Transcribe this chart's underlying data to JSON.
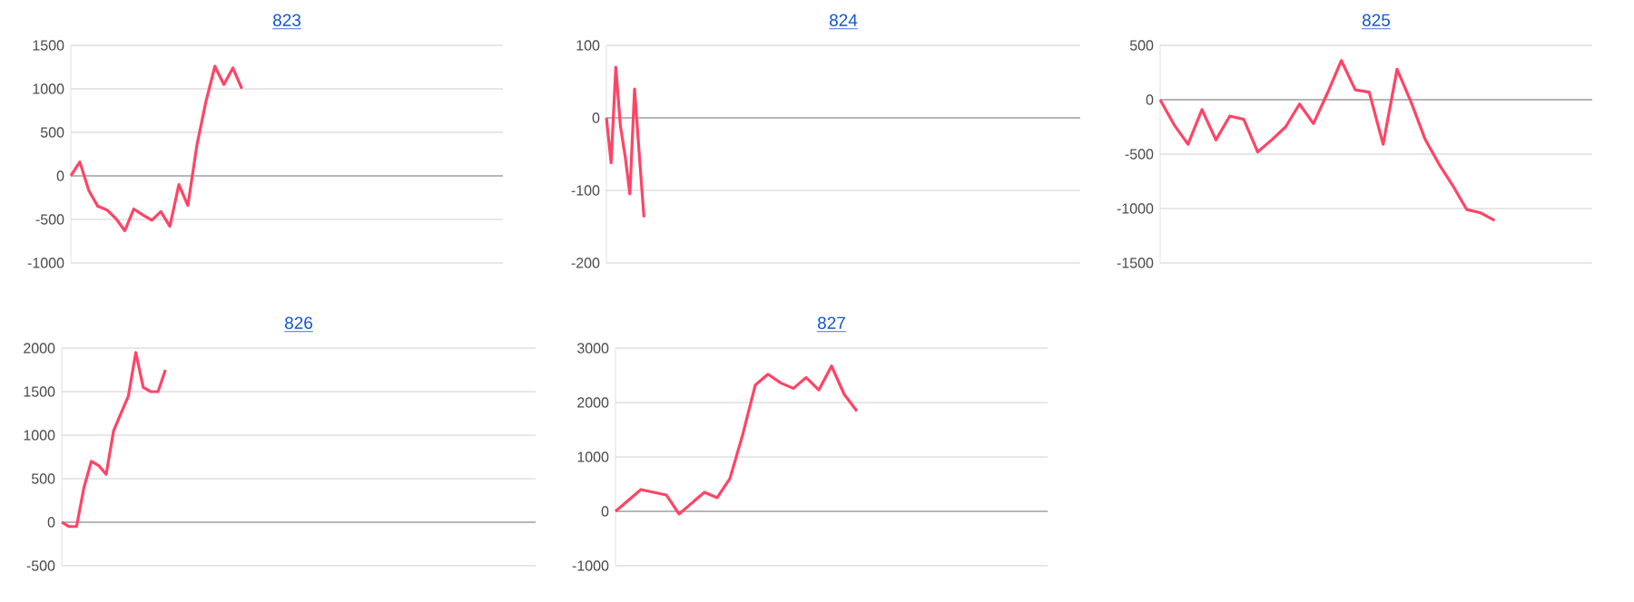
{
  "chart_data": [
    {
      "type": "line",
      "title": "823",
      "color": "#ff4466",
      "grid": "y",
      "tick_labels": "y",
      "ylim": [
        -1000,
        1500
      ],
      "yticks": [
        -1000,
        -500,
        0,
        500,
        1000,
        1500
      ],
      "categories": [
        null,
        null,
        null,
        null,
        null,
        null,
        null,
        null,
        null,
        null,
        null,
        null,
        null,
        null,
        null,
        null,
        null,
        null,
        null,
        null,
        null,
        null,
        null,
        null,
        null,
        null,
        null,
        null,
        null,
        null,
        null,
        null,
        null,
        null,
        null,
        null,
        null,
        null,
        null,
        null,
        null,
        null,
        null,
        null,
        null,
        null,
        null,
        null,
        null
      ],
      "values": [
        0,
        160,
        -170,
        -350,
        -390,
        -490,
        -630,
        -380,
        -450,
        -510,
        -410,
        -580,
        -100,
        -340,
        350,
        850,
        1260,
        1050,
        1240,
        1000,
        null,
        null,
        null,
        null,
        null,
        null,
        null,
        null,
        null,
        null,
        null,
        null,
        null,
        null,
        null,
        null,
        null,
        null,
        null,
        null,
        null,
        null,
        null,
        null,
        null,
        null,
        null,
        null,
        null
      ]
    },
    {
      "type": "line",
      "title": "824",
      "color": "#ff4466",
      "grid": "y",
      "tick_labels": "y",
      "ylim": [
        -200,
        100
      ],
      "yticks": [
        -200,
        -100,
        0,
        100
      ],
      "categories": [
        null,
        null,
        null,
        null,
        null,
        null,
        null,
        null,
        null,
        null,
        null,
        null,
        null,
        null,
        null,
        null,
        null,
        null,
        null,
        null,
        null,
        null,
        null,
        null,
        null,
        null,
        null,
        null,
        null,
        null,
        null,
        null,
        null,
        null,
        null,
        null,
        null,
        null,
        null,
        null,
        null,
        null,
        null,
        null,
        null,
        null,
        null,
        null,
        null,
        null,
        null,
        null,
        null,
        null,
        null,
        null,
        null,
        null,
        null,
        null,
        null,
        null,
        null,
        null,
        null,
        null,
        null,
        null,
        null,
        null,
        null,
        null,
        null,
        null,
        null,
        null,
        null,
        null,
        null,
        null,
        null,
        null,
        null,
        null,
        null,
        null,
        null,
        null,
        null,
        null,
        null,
        null,
        null,
        null,
        null,
        null,
        null,
        null,
        null,
        null,
        null,
        null
      ],
      "values": [
        0,
        -62,
        70,
        -12,
        -53,
        -105,
        40,
        -50,
        -137,
        null,
        null,
        null,
        null,
        null,
        null,
        null,
        null,
        null,
        null,
        null,
        null,
        null,
        null,
        null,
        null,
        null,
        null,
        null,
        null,
        null,
        null,
        null,
        null,
        null,
        null,
        null,
        null,
        null,
        null,
        null,
        null,
        null,
        null,
        null,
        null,
        null,
        null,
        null,
        null,
        null,
        null,
        null,
        null,
        null,
        null,
        null,
        null,
        null,
        null,
        null,
        null,
        null,
        null,
        null,
        null,
        null,
        null,
        null,
        null,
        null,
        null,
        null,
        null,
        null,
        null,
        null,
        null,
        null,
        null,
        null,
        null,
        null,
        null,
        null,
        null,
        null,
        null,
        null,
        null,
        null,
        null,
        null,
        null,
        null,
        null,
        null,
        null,
        null,
        null,
        null,
        null,
        null
      ]
    },
    {
      "type": "line",
      "title": "825",
      "color": "#ff4466",
      "grid": "y",
      "tick_labels": "y",
      "ylim": [
        -1500,
        500
      ],
      "yticks": [
        -1500,
        -1000,
        -500,
        0,
        500
      ],
      "categories": [
        null,
        null,
        null,
        null,
        null,
        null,
        null,
        null,
        null,
        null,
        null,
        null,
        null,
        null,
        null,
        null,
        null,
        null,
        null,
        null,
        null,
        null,
        null,
        null,
        null,
        null,
        null,
        null,
        null,
        null,
        null,
        null
      ],
      "values": [
        0,
        -230,
        -410,
        -90,
        -370,
        -150,
        -180,
        -480,
        -370,
        -250,
        -40,
        -220,
        60,
        360,
        90,
        70,
        -410,
        280,
        -20,
        -360,
        -590,
        -790,
        -1010,
        -1040,
        -1110,
        null,
        null,
        null,
        null,
        null,
        null,
        null
      ]
    },
    {
      "type": "line",
      "title": "826",
      "color": "#ff4466",
      "grid": "y",
      "tick_labels": "y",
      "ylim": [
        -500,
        2000
      ],
      "yticks": [
        -500,
        0,
        500,
        1000,
        1500,
        2000
      ],
      "categories": [
        null,
        null,
        null,
        null,
        null,
        null,
        null,
        null,
        null,
        null,
        null,
        null,
        null,
        null,
        null,
        null,
        null,
        null,
        null,
        null,
        null,
        null,
        null,
        null,
        null,
        null,
        null,
        null,
        null,
        null,
        null,
        null,
        null,
        null,
        null,
        null,
        null,
        null,
        null,
        null,
        null,
        null,
        null,
        null,
        null,
        null,
        null,
        null,
        null,
        null,
        null,
        null,
        null,
        null,
        null,
        null,
        null,
        null,
        null,
        null,
        null,
        null,
        null,
        null,
        null
      ],
      "values": [
        0,
        -50,
        -50,
        400,
        700,
        650,
        550,
        1050,
        1250,
        1450,
        1950,
        1550,
        1500,
        1500,
        1750,
        null,
        null,
        null,
        null,
        null,
        null,
        null,
        null,
        null,
        null,
        null,
        null,
        null,
        null,
        null,
        null,
        null,
        null,
        null,
        null,
        null,
        null,
        null,
        null,
        null,
        null,
        null,
        null,
        null,
        null,
        null,
        null,
        null,
        null,
        null,
        null,
        null,
        null,
        null,
        null,
        null,
        null,
        null,
        null,
        null,
        null,
        null,
        null,
        null,
        null
      ]
    },
    {
      "type": "line",
      "title": "827",
      "color": "#ff4466",
      "grid": "y",
      "tick_labels": "y",
      "ylim": [
        -1000,
        3000
      ],
      "yticks": [
        -1000,
        0,
        1000,
        2000,
        3000
      ],
      "categories": [
        null,
        null,
        null,
        null,
        null,
        null,
        null,
        null,
        null,
        null,
        null,
        null,
        null,
        null,
        null,
        null,
        null,
        null,
        null,
        null,
        null,
        null,
        null,
        null,
        null,
        null,
        null,
        null,
        null,
        null,
        null,
        null,
        null,
        null,
        null
      ],
      "values": [
        0,
        200,
        400,
        350,
        300,
        -50,
        150,
        350,
        250,
        600,
        1400,
        2320,
        2520,
        2360,
        2260,
        2460,
        2230,
        2670,
        2150,
        1840,
        null,
        null,
        null,
        null,
        null,
        null,
        null,
        null,
        null,
        null,
        null,
        null,
        null,
        null,
        null
      ]
    }
  ]
}
